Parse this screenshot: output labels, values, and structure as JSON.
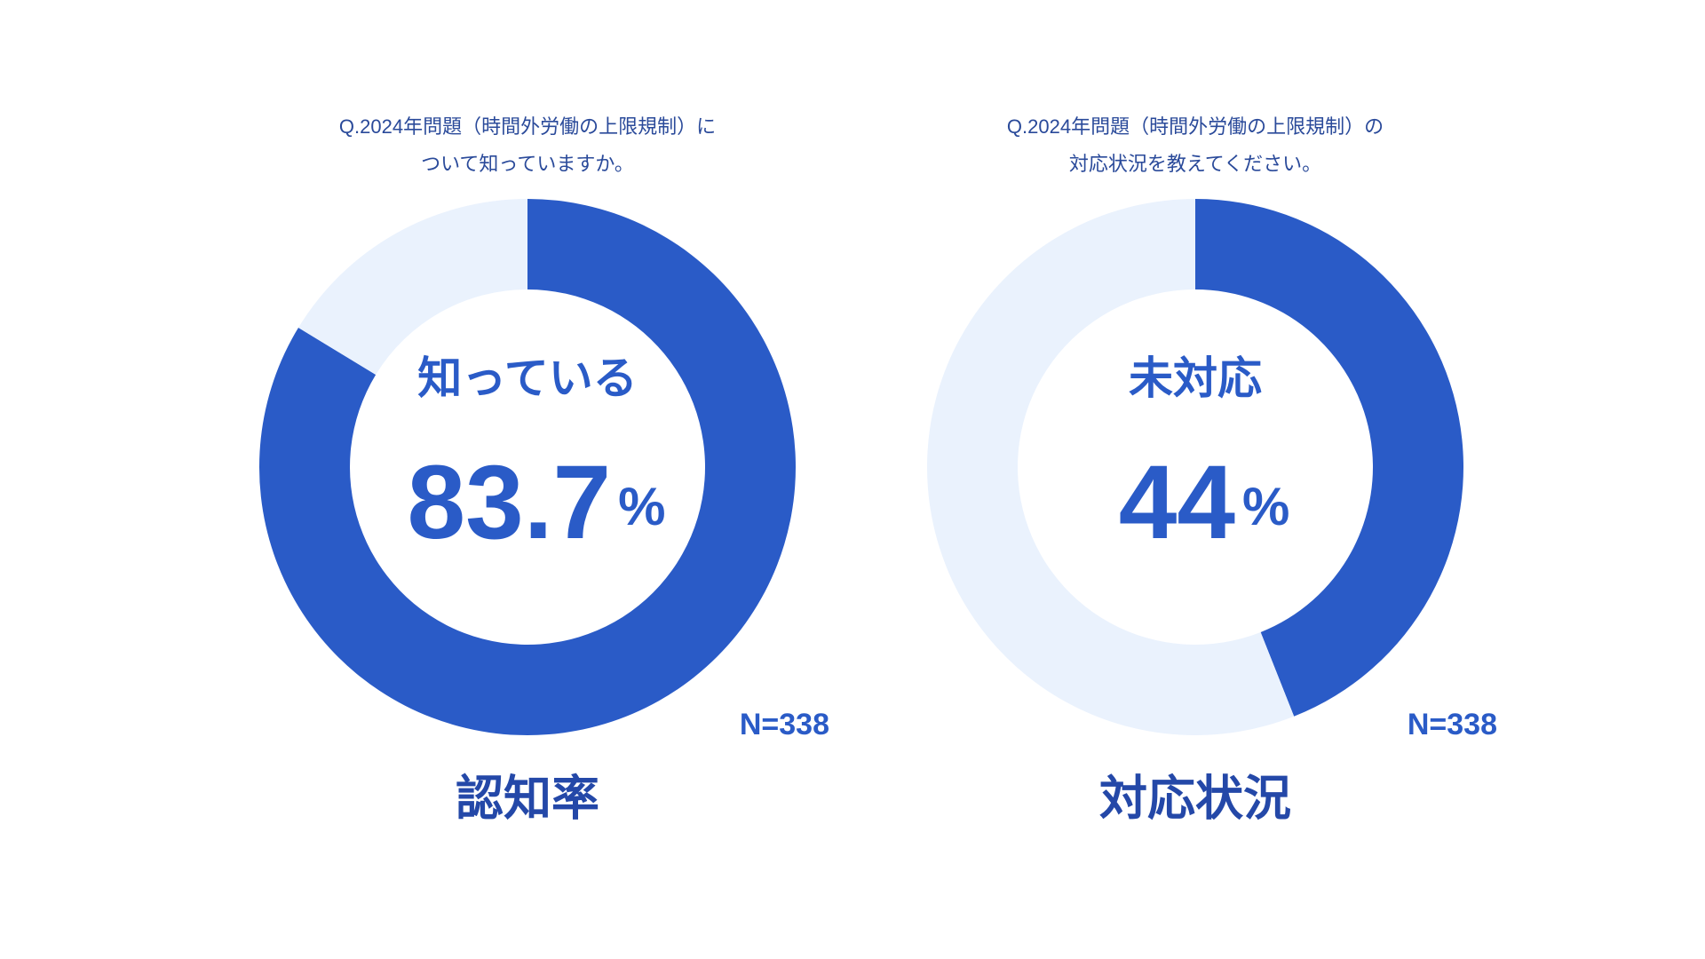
{
  "chart_data": [
    {
      "type": "donut",
      "question": [
        "Q.2024年問題（時間外労働の上限規制）に",
        "ついて知っていますか。"
      ],
      "categories": [
        "知っている",
        null
      ],
      "values": [
        83.7,
        16.3
      ],
      "colors": [
        "#2a5bc7",
        "#eaf2fd"
      ],
      "unit": "%",
      "n_label": "N=338",
      "label": "認知率"
    },
    {
      "type": "donut",
      "question": [
        "Q.2024年問題（時間外労働の上限規制）の",
        "対応状況を教えてください。"
      ],
      "categories": [
        "未対応",
        null
      ],
      "values": [
        44,
        56
      ],
      "colors": [
        "#2a5bc7",
        "#eaf2fd"
      ],
      "unit": "%",
      "n_label": "N=338",
      "label": "対応状況"
    }
  ]
}
